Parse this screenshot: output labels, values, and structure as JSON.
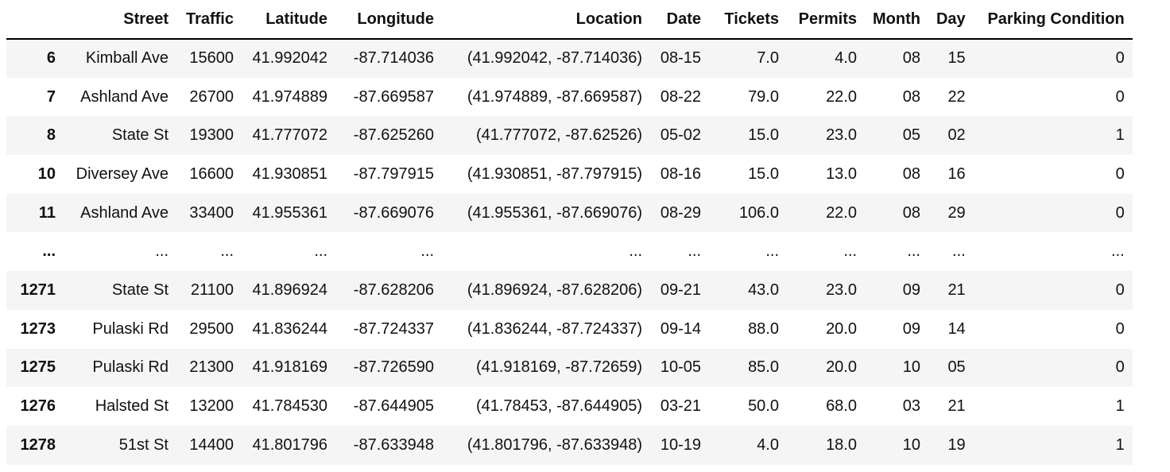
{
  "table": {
    "columns": [
      "",
      "Street",
      "Traffic",
      "Latitude",
      "Longitude",
      "Location",
      "Date",
      "Tickets",
      "Permits",
      "Month",
      "Day",
      "Parking Condition"
    ],
    "rows": [
      {
        "index": "6",
        "cells": [
          "Kimball Ave",
          "15600",
          "41.992042",
          "-87.714036",
          "(41.992042, -87.714036)",
          "08-15",
          "7.0",
          "4.0",
          "08",
          "15",
          "0"
        ]
      },
      {
        "index": "7",
        "cells": [
          "Ashland Ave",
          "26700",
          "41.974889",
          "-87.669587",
          "(41.974889, -87.669587)",
          "08-22",
          "79.0",
          "22.0",
          "08",
          "22",
          "0"
        ]
      },
      {
        "index": "8",
        "cells": [
          "State St",
          "19300",
          "41.777072",
          "-87.625260",
          "(41.777072, -87.62526)",
          "05-02",
          "15.0",
          "23.0",
          "05",
          "02",
          "1"
        ]
      },
      {
        "index": "10",
        "cells": [
          "Diversey Ave",
          "16600",
          "41.930851",
          "-87.797915",
          "(41.930851, -87.797915)",
          "08-16",
          "15.0",
          "13.0",
          "08",
          "16",
          "0"
        ]
      },
      {
        "index": "11",
        "cells": [
          "Ashland Ave",
          "33400",
          "41.955361",
          "-87.669076",
          "(41.955361, -87.669076)",
          "08-29",
          "106.0",
          "22.0",
          "08",
          "29",
          "0"
        ]
      },
      {
        "index": "...",
        "cells": [
          "...",
          "...",
          "...",
          "...",
          "...",
          "...",
          "...",
          "...",
          "...",
          "...",
          "..."
        ]
      },
      {
        "index": "1271",
        "cells": [
          "State St",
          "21100",
          "41.896924",
          "-87.628206",
          "(41.896924, -87.628206)",
          "09-21",
          "43.0",
          "23.0",
          "09",
          "21",
          "0"
        ]
      },
      {
        "index": "1273",
        "cells": [
          "Pulaski Rd",
          "29500",
          "41.836244",
          "-87.724337",
          "(41.836244, -87.724337)",
          "09-14",
          "88.0",
          "20.0",
          "09",
          "14",
          "0"
        ]
      },
      {
        "index": "1275",
        "cells": [
          "Pulaski Rd",
          "21300",
          "41.918169",
          "-87.726590",
          "(41.918169, -87.72659)",
          "10-05",
          "85.0",
          "20.0",
          "10",
          "05",
          "0"
        ]
      },
      {
        "index": "1276",
        "cells": [
          "Halsted St",
          "13200",
          "41.784530",
          "-87.644905",
          "(41.78453, -87.644905)",
          "03-21",
          "50.0",
          "68.0",
          "03",
          "21",
          "1"
        ]
      },
      {
        "index": "1278",
        "cells": [
          "51st St",
          "14400",
          "41.801796",
          "-87.633948",
          "(41.801796, -87.633948)",
          "10-19",
          "4.0",
          "18.0",
          "10",
          "19",
          "1"
        ]
      }
    ]
  }
}
